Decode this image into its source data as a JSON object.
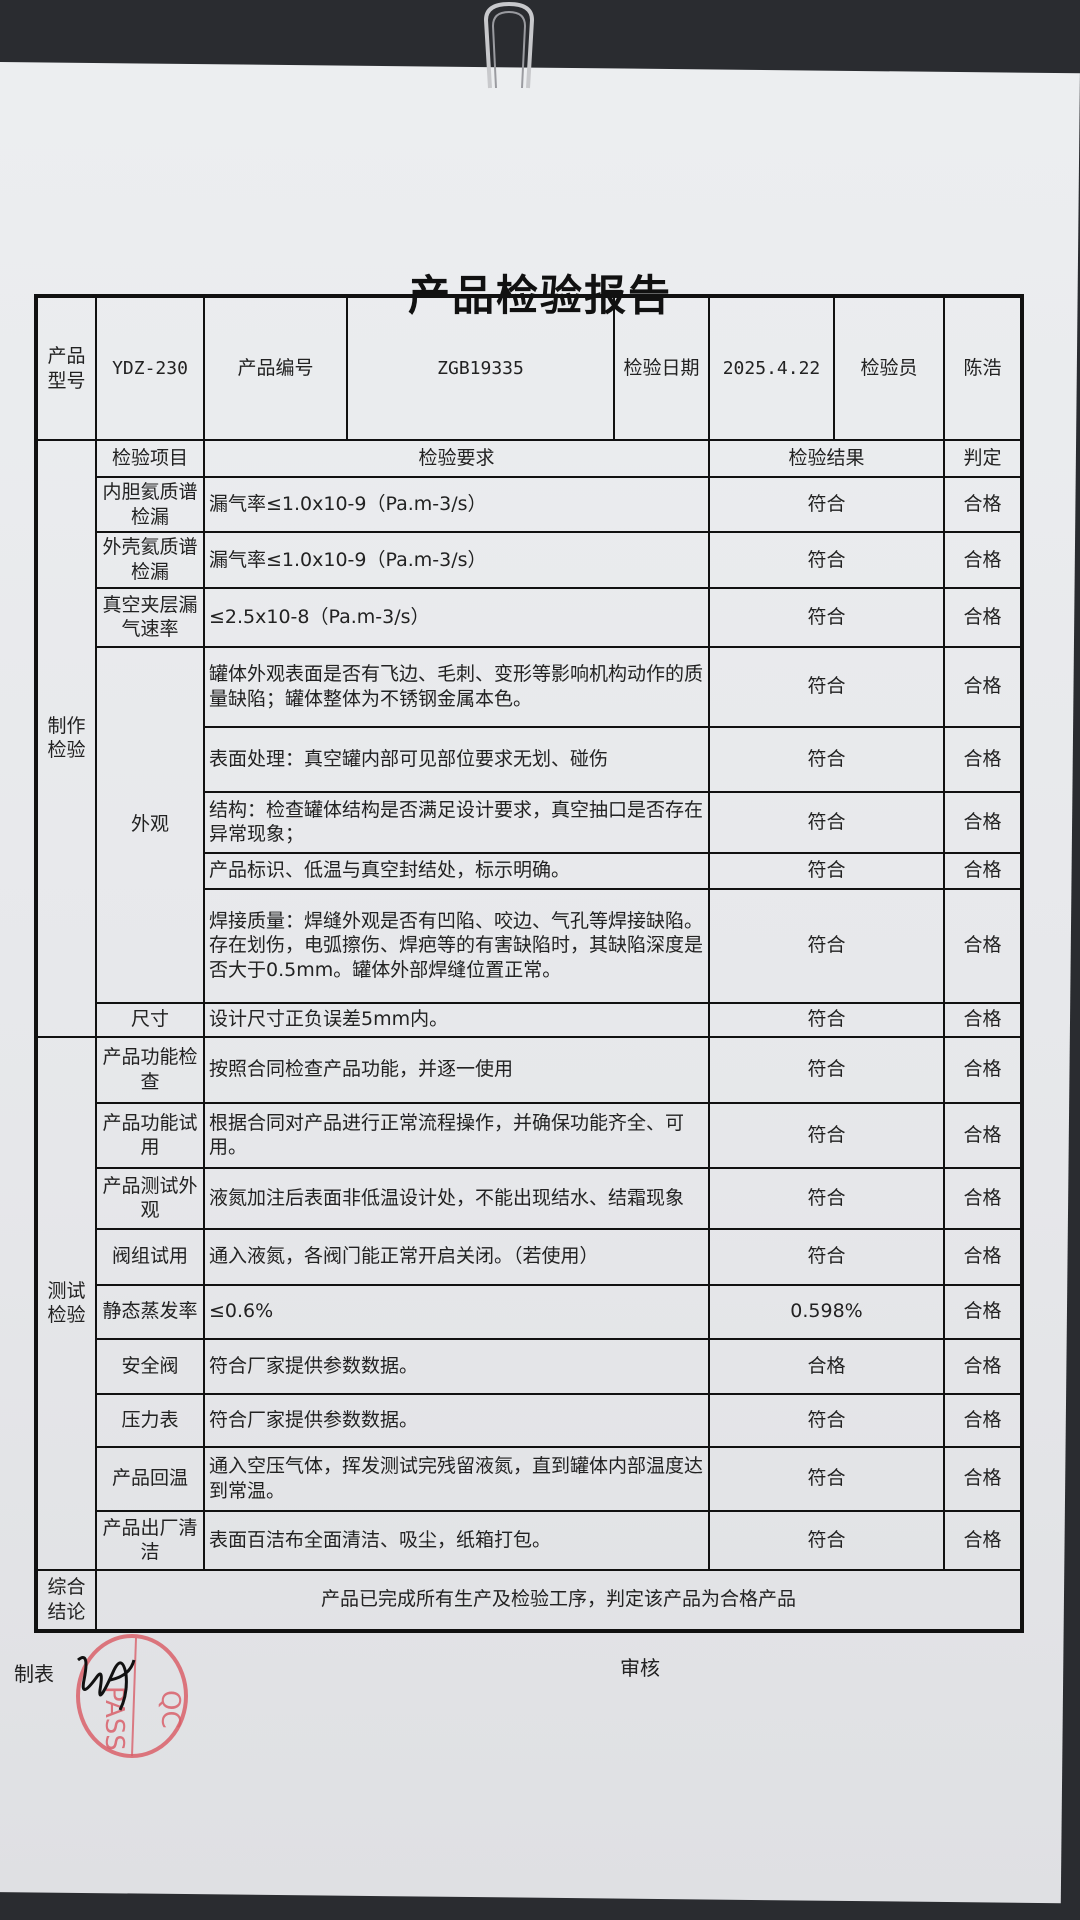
{
  "title": "产品检验报告",
  "header": {
    "model_label": "产品型号",
    "model_value": "YDZ-230",
    "serial_label": "产品编号",
    "serial_value": "ZGB19335",
    "date_label": "检验日期",
    "date_value": "2025.4.22",
    "inspector_label": "检验员",
    "inspector_value": "陈浩"
  },
  "columns": {
    "item": "检验项目",
    "requirement": "检验要求",
    "result": "检验结果",
    "verdict": "判定"
  },
  "sections": [
    {
      "name": "制作检验",
      "groups": [
        {
          "item": "内胆氦质谱检漏",
          "rows": [
            {
              "req": "漏气率≤1.0x10-9（Pa.m-3/s）",
              "result": "符合",
              "verdict": "合格"
            }
          ]
        },
        {
          "item": "外壳氦质谱检漏",
          "rows": [
            {
              "req": "漏气率≤1.0x10-9（Pa.m-3/s）",
              "result": "符合",
              "verdict": "合格"
            }
          ]
        },
        {
          "item": "真空夹层漏气速率",
          "rows": [
            {
              "req": "≤2.5x10-8（Pa.m-3/s）",
              "result": "符合",
              "verdict": "合格"
            }
          ]
        },
        {
          "item": "外观",
          "rows": [
            {
              "req": "罐体外观表面是否有飞边、毛刺、变形等影响机构动作的质量缺陷；罐体整体为不锈钢金属本色。",
              "result": "符合",
              "verdict": "合格"
            },
            {
              "req": "表面处理：真空罐内部可见部位要求无划、碰伤",
              "result": "符合",
              "verdict": "合格"
            },
            {
              "req": "结构：检查罐体结构是否满足设计要求，真空抽口是否存在异常现象；",
              "result": "符合",
              "verdict": "合格"
            },
            {
              "req": "产品标识、低温与真空封结处，标示明确。",
              "result": "符合",
              "verdict": "合格"
            },
            {
              "req": "焊接质量：焊缝外观是否有凹陷、咬边、气孔等焊接缺陷。存在划伤，电弧擦伤、焊疤等的有害缺陷时，其缺陷深度是否大于0.5mm。罐体外部焊缝位置正常。",
              "result": "符合",
              "verdict": "合格"
            }
          ]
        },
        {
          "item": "尺寸",
          "rows": [
            {
              "req": "设计尺寸正负误差5mm内。",
              "result": "符合",
              "verdict": "合格"
            }
          ]
        }
      ]
    },
    {
      "name": "测试检验",
      "groups": [
        {
          "item": "产品功能检查",
          "rows": [
            {
              "req": "按照合同检查产品功能，并逐一使用",
              "result": "符合",
              "verdict": "合格"
            }
          ]
        },
        {
          "item": "产品功能试用",
          "rows": [
            {
              "req": "根据合同对产品进行正常流程操作，并确保功能齐全、可用。",
              "result": "符合",
              "verdict": "合格"
            }
          ]
        },
        {
          "item": "产品测试外观",
          "rows": [
            {
              "req": "液氮加注后表面非低温设计处，不能出现结水、结霜现象",
              "result": "符合",
              "verdict": "合格"
            }
          ]
        },
        {
          "item": "阀组试用",
          "rows": [
            {
              "req": "通入液氮，各阀门能正常开启关闭。（若使用）",
              "result": "符合",
              "verdict": "合格"
            }
          ]
        },
        {
          "item": "静态蒸发率",
          "rows": [
            {
              "req": "≤0.6%",
              "result": "0.598%",
              "verdict": "合格"
            }
          ]
        },
        {
          "item": "安全阀",
          "rows": [
            {
              "req": "符合厂家提供参数数据。",
              "result": "合格",
              "verdict": "合格"
            }
          ]
        },
        {
          "item": "压力表",
          "rows": [
            {
              "req": "符合厂家提供参数数据。",
              "result": "符合",
              "verdict": "合格"
            }
          ]
        },
        {
          "item": "产品回温",
          "rows": [
            {
              "req": "通入空压气体，挥发测试完残留液氮，直到罐体内部温度达到常温。",
              "result": "符合",
              "verdict": "合格"
            }
          ]
        },
        {
          "item": "产品出厂清洁",
          "rows": [
            {
              "req": "表面百洁布全面清洁、吸尘，纸箱打包。",
              "result": "符合",
              "verdict": "合格"
            }
          ]
        }
      ]
    }
  ],
  "conclusion": {
    "label": "综合结论",
    "text": "产品已完成所有生产及检验工序，判定该产品为合格产品"
  },
  "footer": {
    "prepared_label": "制表",
    "prepared_signature": "陈浩",
    "review_label": "审核",
    "stamp_text": "QC PASS"
  },
  "colors": {
    "stamp": "#d9606a",
    "ink": "#111111",
    "paper": "#e9eaec"
  }
}
